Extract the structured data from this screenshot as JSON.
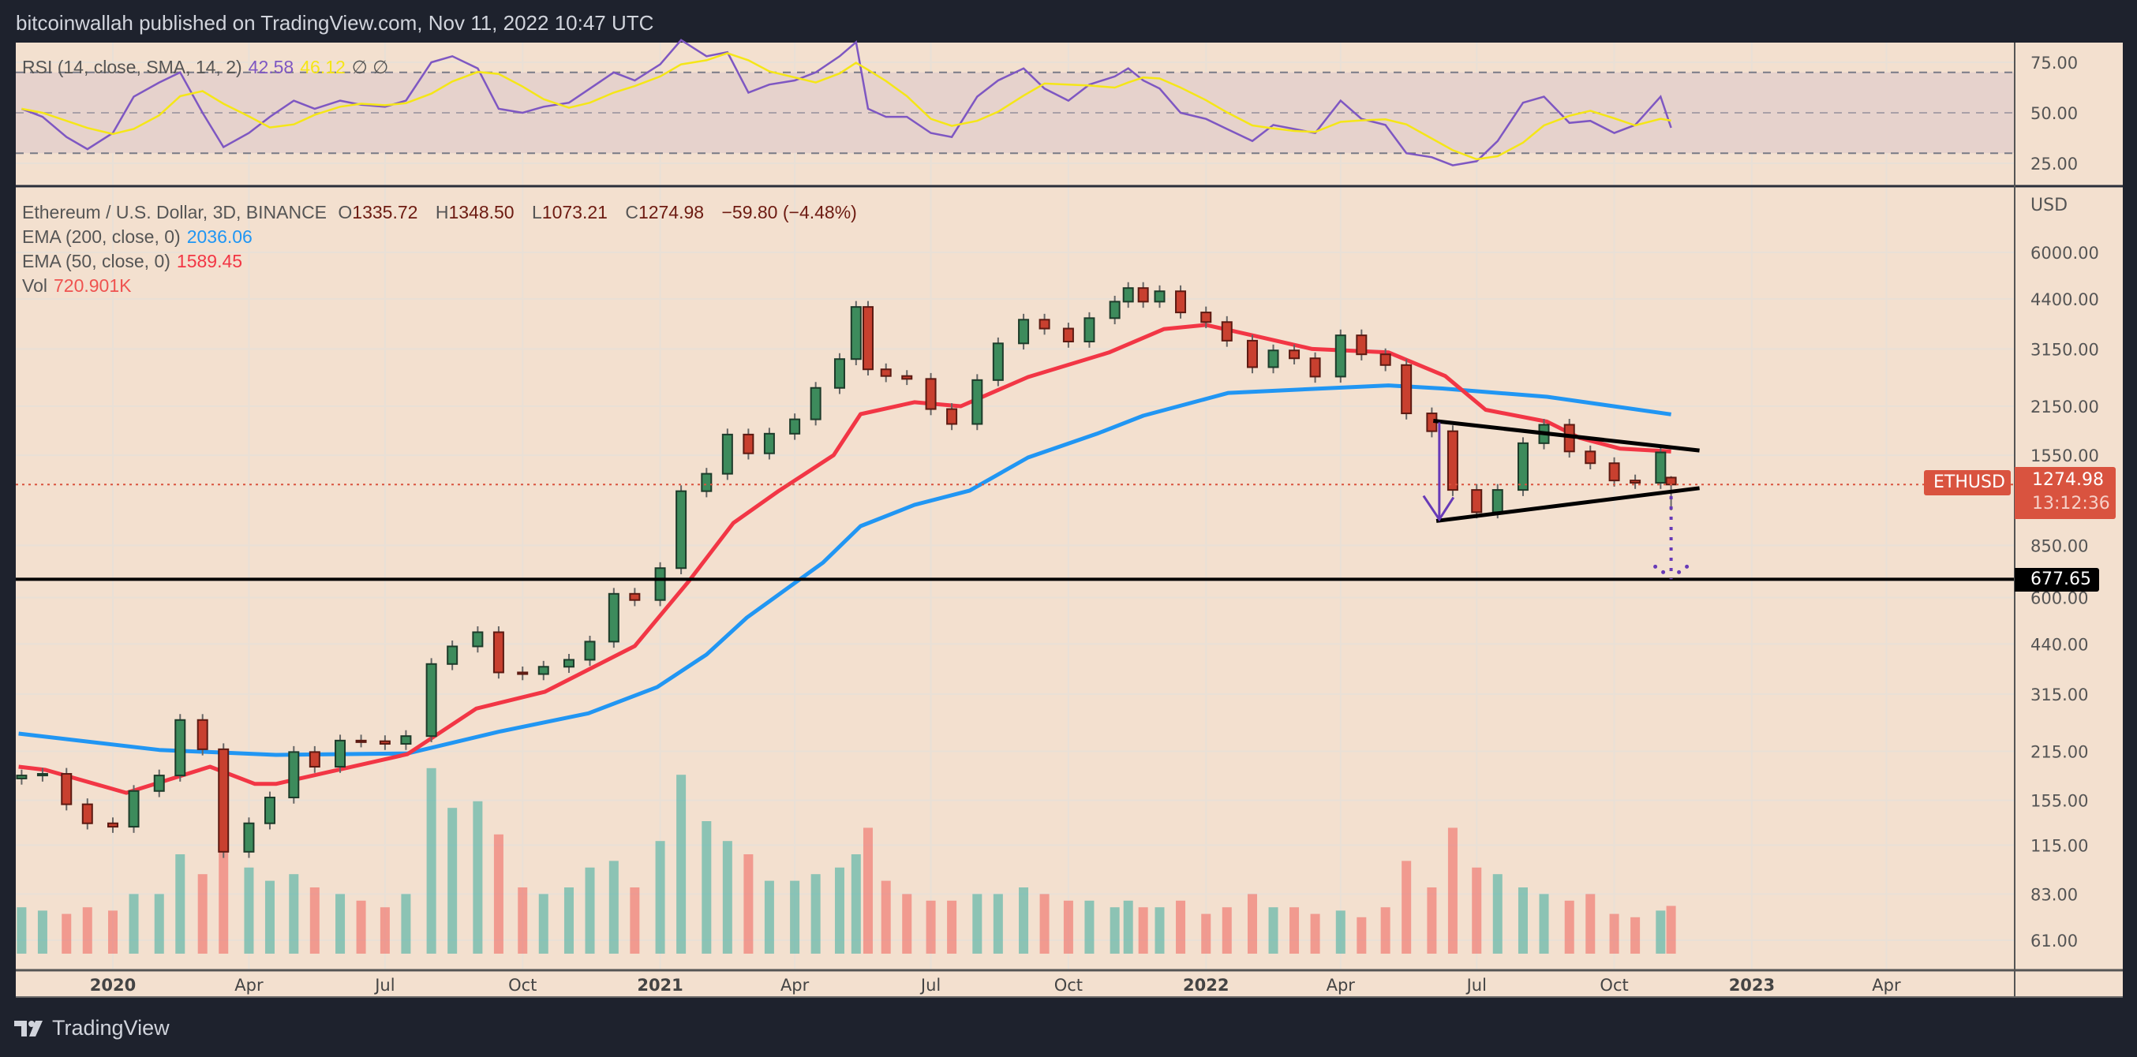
{
  "header": {
    "published": "bitcoinwallah published on TradingView.com, Nov 11, 2022 10:47 UTC"
  },
  "rsi_legend": {
    "label": "RSI (14, close, SMA, 14, 2)",
    "rsi_value": "42.58",
    "sma_value": "46.12",
    "extra": "∅ ∅"
  },
  "price_legend": {
    "symbol": "Ethereum / U.S. Dollar, 3D, BINANCE",
    "o_label": "O",
    "o": "1335.72",
    "h_label": "H",
    "h": "1348.50",
    "l_label": "L",
    "l": "1073.21",
    "c_label": "C",
    "c": "1274.98",
    "change": "−59.80 (−4.48%)",
    "ema200_label": "EMA (200, close, 0)",
    "ema200_value": "2036.06",
    "ema50_label": "EMA (50, close, 0)",
    "ema50_value": "1589.45",
    "vol_label": "Vol",
    "vol_value": "720.901K"
  },
  "price_tag": {
    "symbol": "ETHUSD",
    "price": "1274.98",
    "countdown": "13:12:36"
  },
  "level_tag": {
    "price": "677.65"
  },
  "axis": {
    "currency": "USD"
  },
  "footer": {
    "brand": "TradingView"
  },
  "colors": {
    "up": "#3d8b5c",
    "down": "#c8402f",
    "ema200": "#2196f3",
    "ema50": "#f23645",
    "rsi": "#7e57c2",
    "rsi_sma": "#f5e617",
    "trendline": "#000000",
    "projection": "#673ab7",
    "background": "#f3e0cf"
  },
  "chart_data": {
    "type": "candlestick",
    "interval": "3D",
    "y_scale": "log",
    "grid": true,
    "price_ticks": [
      6000,
      4400,
      3150,
      2150,
      1550,
      850,
      600,
      440,
      315,
      215,
      155,
      115,
      83,
      61
    ],
    "price_tick_labels": [
      "6000.00",
      "4400.00",
      "3150.00",
      "2150.00",
      "1550.00",
      "850.00",
      "600.00",
      "440.00",
      "315.00",
      "215.00",
      "155.00",
      "115.00",
      "83.00",
      "61.00"
    ],
    "rsi_ticks": [
      75,
      50,
      25
    ],
    "rsi_tick_labels": [
      "75.00",
      "50.00",
      "25.00"
    ],
    "rsi_bands": [
      70,
      50,
      30
    ],
    "x_ticks": [
      {
        "date": "2020-01-01",
        "label": "2020",
        "major": true
      },
      {
        "date": "2020-04-01",
        "label": "Apr"
      },
      {
        "date": "2020-07-01",
        "label": "Jul"
      },
      {
        "date": "2020-10-01",
        "label": "Oct"
      },
      {
        "date": "2021-01-01",
        "label": "2021",
        "major": true
      },
      {
        "date": "2021-04-01",
        "label": "Apr"
      },
      {
        "date": "2021-07-01",
        "label": "Jul"
      },
      {
        "date": "2021-10-01",
        "label": "Oct"
      },
      {
        "date": "2022-01-01",
        "label": "2022",
        "major": true
      },
      {
        "date": "2022-04-01",
        "label": "Apr"
      },
      {
        "date": "2022-07-01",
        "label": "Jul"
      },
      {
        "date": "2022-10-01",
        "label": "Oct"
      },
      {
        "date": "2023-01-01",
        "label": "2023",
        "major": true
      },
      {
        "date": "2023-04-01",
        "label": "Apr"
      }
    ],
    "last_candle": {
      "date": "2022-11-08",
      "open": 1335.72,
      "high": 1348.5,
      "low": 1073.21,
      "close": 1274.98
    },
    "candles": [
      {
        "d": "2019-11-01",
        "c": 183,
        "rsi": 52,
        "v": 700
      },
      {
        "d": "2019-11-15",
        "c": 185,
        "rsi": 48,
        "v": 650
      },
      {
        "d": "2019-12-01",
        "c": 151,
        "rsi": 38,
        "v": 600
      },
      {
        "d": "2019-12-15",
        "c": 133,
        "rsi": 32,
        "v": 700
      },
      {
        "d": "2020-01-01",
        "c": 130,
        "rsi": 40,
        "v": 650
      },
      {
        "d": "2020-01-15",
        "c": 165,
        "rsi": 58,
        "v": 900
      },
      {
        "d": "2020-02-01",
        "c": 183,
        "rsi": 65,
        "v": 900
      },
      {
        "d": "2020-02-15",
        "c": 265,
        "rsi": 70,
        "v": 1500
      },
      {
        "d": "2020-03-01",
        "c": 218,
        "rsi": 50,
        "v": 1200
      },
      {
        "d": "2020-03-15",
        "c": 110,
        "rsi": 33,
        "v": 1900
      },
      {
        "d": "2020-04-01",
        "c": 133,
        "rsi": 40,
        "v": 1300
      },
      {
        "d": "2020-04-15",
        "c": 158,
        "rsi": 48,
        "v": 1100
      },
      {
        "d": "2020-05-01",
        "c": 214,
        "rsi": 56,
        "v": 1200
      },
      {
        "d": "2020-05-15",
        "c": 194,
        "rsi": 52,
        "v": 1000
      },
      {
        "d": "2020-06-01",
        "c": 231,
        "rsi": 56,
        "v": 900
      },
      {
        "d": "2020-06-15",
        "c": 230,
        "rsi": 54,
        "v": 800
      },
      {
        "d": "2020-07-01",
        "c": 226,
        "rsi": 53,
        "v": 700
      },
      {
        "d": "2020-07-15",
        "c": 238,
        "rsi": 56,
        "v": 900
      },
      {
        "d": "2020-08-01",
        "c": 385,
        "rsi": 75,
        "v": 2800
      },
      {
        "d": "2020-08-15",
        "c": 433,
        "rsi": 78,
        "v": 2200
      },
      {
        "d": "2020-09-01",
        "c": 476,
        "rsi": 72,
        "v": 2300
      },
      {
        "d": "2020-09-15",
        "c": 364,
        "rsi": 52,
        "v": 1800
      },
      {
        "d": "2020-10-01",
        "c": 360,
        "rsi": 50,
        "v": 1000
      },
      {
        "d": "2020-10-15",
        "c": 378,
        "rsi": 53,
        "v": 900
      },
      {
        "d": "2020-11-01",
        "c": 396,
        "rsi": 55,
        "v": 1000
      },
      {
        "d": "2020-11-15",
        "c": 447,
        "rsi": 62,
        "v": 1300
      },
      {
        "d": "2020-12-01",
        "c": 615,
        "rsi": 70,
        "v": 1400
      },
      {
        "d": "2020-12-15",
        "c": 590,
        "rsi": 66,
        "v": 1000
      },
      {
        "d": "2021-01-01",
        "c": 730,
        "rsi": 74,
        "v": 1700
      },
      {
        "d": "2021-01-15",
        "c": 1220,
        "rsi": 86,
        "v": 2700
      },
      {
        "d": "2021-02-01",
        "c": 1370,
        "rsi": 78,
        "v": 2000
      },
      {
        "d": "2021-02-15",
        "c": 1780,
        "rsi": 80,
        "v": 1700
      },
      {
        "d": "2021-03-01",
        "c": 1570,
        "rsi": 60,
        "v": 1500
      },
      {
        "d": "2021-03-15",
        "c": 1790,
        "rsi": 64,
        "v": 1100
      },
      {
        "d": "2021-04-01",
        "c": 1970,
        "rsi": 66,
        "v": 1100
      },
      {
        "d": "2021-04-15",
        "c": 2430,
        "rsi": 70,
        "v": 1200
      },
      {
        "d": "2021-05-01",
        "c": 2945,
        "rsi": 78,
        "v": 1300
      },
      {
        "d": "2021-05-12",
        "c": 4170,
        "rsi": 85,
        "v": 1500
      },
      {
        "d": "2021-05-20",
        "c": 2750,
        "rsi": 52,
        "v": 1900
      },
      {
        "d": "2021-06-01",
        "c": 2630,
        "rsi": 48,
        "v": 1100
      },
      {
        "d": "2021-06-15",
        "c": 2580,
        "rsi": 48,
        "v": 900
      },
      {
        "d": "2021-07-01",
        "c": 2110,
        "rsi": 40,
        "v": 800
      },
      {
        "d": "2021-07-15",
        "c": 1910,
        "rsi": 38,
        "v": 800
      },
      {
        "d": "2021-08-01",
        "c": 2560,
        "rsi": 58,
        "v": 900
      },
      {
        "d": "2021-08-15",
        "c": 3270,
        "rsi": 66,
        "v": 900
      },
      {
        "d": "2021-09-01",
        "c": 3830,
        "rsi": 72,
        "v": 1000
      },
      {
        "d": "2021-09-15",
        "c": 3610,
        "rsi": 62,
        "v": 900
      },
      {
        "d": "2021-10-01",
        "c": 3310,
        "rsi": 56,
        "v": 800
      },
      {
        "d": "2021-10-15",
        "c": 3870,
        "rsi": 64,
        "v": 800
      },
      {
        "d": "2021-11-01",
        "c": 4320,
        "rsi": 68,
        "v": 700
      },
      {
        "d": "2021-11-10",
        "c": 4730,
        "rsi": 72,
        "v": 800
      },
      {
        "d": "2021-11-20",
        "c": 4320,
        "rsi": 66,
        "v": 700
      },
      {
        "d": "2021-12-01",
        "c": 4630,
        "rsi": 62,
        "v": 700
      },
      {
        "d": "2021-12-15",
        "c": 4020,
        "rsi": 50,
        "v": 800
      },
      {
        "d": "2022-01-01",
        "c": 3770,
        "rsi": 47,
        "v": 600
      },
      {
        "d": "2022-01-15",
        "c": 3330,
        "rsi": 42,
        "v": 700
      },
      {
        "d": "2022-02-01",
        "c": 2790,
        "rsi": 36,
        "v": 900
      },
      {
        "d": "2022-02-15",
        "c": 3120,
        "rsi": 44,
        "v": 700
      },
      {
        "d": "2022-03-01",
        "c": 2960,
        "rsi": 42,
        "v": 700
      },
      {
        "d": "2022-03-15",
        "c": 2620,
        "rsi": 40,
        "v": 600
      },
      {
        "d": "2022-04-01",
        "c": 3450,
        "rsi": 56,
        "v": 650
      },
      {
        "d": "2022-04-15",
        "c": 3040,
        "rsi": 47,
        "v": 550
      },
      {
        "d": "2022-05-01",
        "c": 2830,
        "rsi": 44,
        "v": 700
      },
      {
        "d": "2022-05-15",
        "c": 2050,
        "rsi": 30,
        "v": 1400
      },
      {
        "d": "2022-06-01",
        "c": 1820,
        "rsi": 28,
        "v": 1000
      },
      {
        "d": "2022-06-15",
        "c": 1230,
        "rsi": 24,
        "v": 1900
      },
      {
        "d": "2022-07-01",
        "c": 1060,
        "rsi": 26,
        "v": 1300
      },
      {
        "d": "2022-07-15",
        "c": 1230,
        "rsi": 36,
        "v": 1200
      },
      {
        "d": "2022-08-01",
        "c": 1680,
        "rsi": 55,
        "v": 1000
      },
      {
        "d": "2022-08-15",
        "c": 1900,
        "rsi": 58,
        "v": 900
      },
      {
        "d": "2022-09-01",
        "c": 1590,
        "rsi": 45,
        "v": 800
      },
      {
        "d": "2022-09-15",
        "c": 1470,
        "rsi": 46,
        "v": 900
      },
      {
        "d": "2022-10-01",
        "c": 1310,
        "rsi": 40,
        "v": 600
      },
      {
        "d": "2022-10-15",
        "c": 1290,
        "rsi": 44,
        "v": 550
      },
      {
        "d": "2022-11-01",
        "c": 1580,
        "rsi": 58,
        "v": 650
      },
      {
        "d": "2022-11-08",
        "c": 1274.98,
        "rsi": 42.58,
        "v": 720.901
      }
    ],
    "ema200": [
      [
        "2019-10-30",
        242
      ],
      [
        "2020-02-01",
        217
      ],
      [
        "2020-04-19",
        210
      ],
      [
        "2020-07-16",
        212
      ],
      [
        "2020-09-15",
        245
      ],
      [
        "2020-11-14",
        277
      ],
      [
        "2020-12-30",
        330
      ],
      [
        "2021-02-01",
        410
      ],
      [
        "2021-02-28",
        525
      ],
      [
        "2021-04-20",
        758
      ],
      [
        "2021-05-15",
        966
      ],
      [
        "2021-06-20",
        1113
      ],
      [
        "2021-07-27",
        1225
      ],
      [
        "2021-09-04",
        1527
      ],
      [
        "2021-10-20",
        1789
      ],
      [
        "2021-11-20",
        2018
      ],
      [
        "2022-01-16",
        2350
      ],
      [
        "2022-05-03",
        2470
      ],
      [
        "2022-06-08",
        2420
      ],
      [
        "2022-08-17",
        2290
      ],
      [
        "2022-11-08",
        2036.06
      ]
    ],
    "ema50": [
      [
        "2019-10-30",
        194
      ],
      [
        "2019-11-17",
        190
      ],
      [
        "2020-01-10",
        163
      ],
      [
        "2020-03-06",
        194
      ],
      [
        "2020-04-05",
        173
      ],
      [
        "2020-04-19",
        173
      ],
      [
        "2020-07-16",
        211
      ],
      [
        "2020-08-31",
        286
      ],
      [
        "2020-10-16",
        320
      ],
      [
        "2020-12-15",
        434
      ],
      [
        "2021-01-20",
        668
      ],
      [
        "2021-02-19",
        987
      ],
      [
        "2021-03-21",
        1220
      ],
      [
        "2021-04-27",
        1551
      ],
      [
        "2021-05-15",
        2040
      ],
      [
        "2021-06-20",
        2208
      ],
      [
        "2021-07-21",
        2150
      ],
      [
        "2021-09-04",
        2612
      ],
      [
        "2021-10-28",
        3076
      ],
      [
        "2021-12-04",
        3600
      ],
      [
        "2022-01-01",
        3700
      ],
      [
        "2022-02-05",
        3420
      ],
      [
        "2022-03-13",
        3150
      ],
      [
        "2022-05-03",
        3080
      ],
      [
        "2022-06-10",
        2630
      ],
      [
        "2022-07-07",
        2100
      ],
      [
        "2022-08-17",
        1940
      ],
      [
        "2022-09-08",
        1740
      ],
      [
        "2022-10-05",
        1620
      ],
      [
        "2022-11-08",
        1589.45
      ]
    ],
    "annotations": {
      "horizontal_level": 677.65,
      "current_price_line": 1274.98,
      "triangle_upper": [
        [
          "2022-06-02",
          1950
        ],
        [
          "2022-11-27",
          1600
        ]
      ],
      "triangle_lower": [
        [
          "2022-06-04",
          1000
        ],
        [
          "2022-11-27",
          1245
        ]
      ],
      "down_arrow": [
        [
          "2022-06-06",
          1930
        ],
        [
          "2022-06-06",
          1010
        ]
      ],
      "projection_dotted": [
        [
          "2022-11-08",
          1180
        ],
        [
          "2022-11-08",
          677.65
        ]
      ]
    }
  }
}
